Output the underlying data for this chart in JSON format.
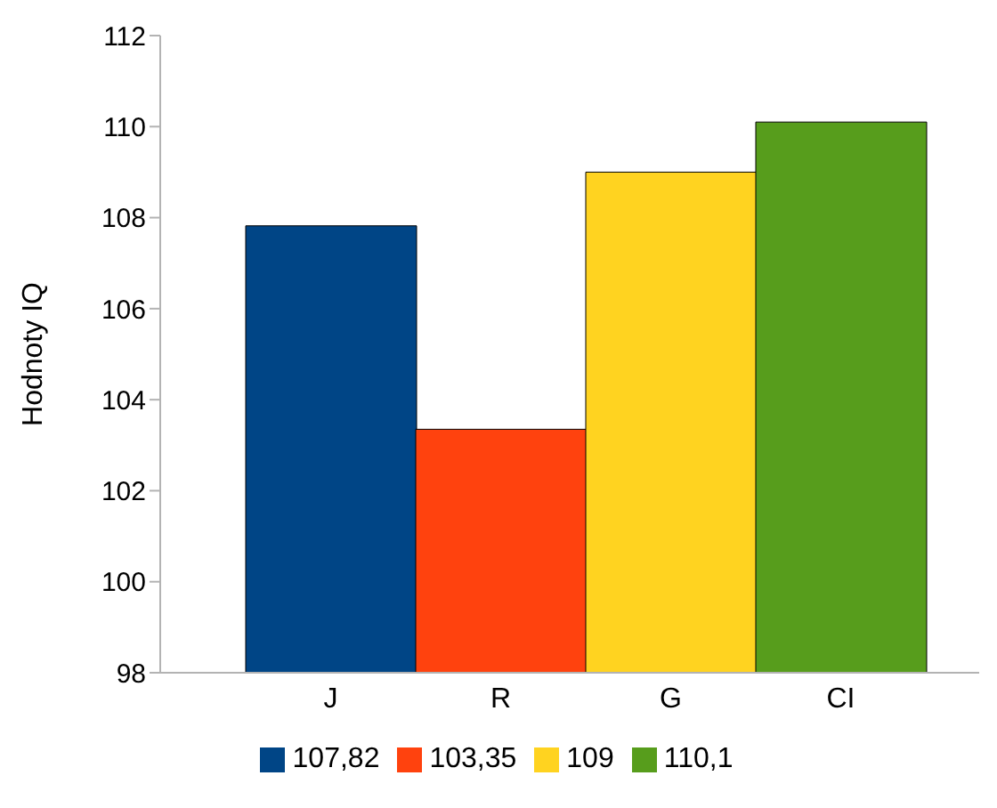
{
  "chart_data": {
    "type": "bar",
    "stacked": true,
    "ylabel": "Hodnoty IQ",
    "categories": [
      "J",
      "R",
      "G",
      "CI"
    ],
    "series": [
      {
        "name": "107,82",
        "color": "#004586",
        "values": [
          107.82,
          null,
          null,
          null
        ]
      },
      {
        "name": "103,35",
        "color": "#ff420e",
        "values": [
          null,
          103.35,
          null,
          null
        ]
      },
      {
        "name": "109",
        "color": "#ffd320",
        "values": [
          null,
          null,
          109,
          null
        ]
      },
      {
        "name": "110,1",
        "color": "#579d1c",
        "values": [
          null,
          null,
          null,
          110.1
        ]
      }
    ],
    "ylim": [
      98,
      112
    ],
    "yticks": [
      98,
      100,
      102,
      104,
      106,
      108,
      110,
      112
    ],
    "grid": false,
    "legend": "bottom"
  }
}
